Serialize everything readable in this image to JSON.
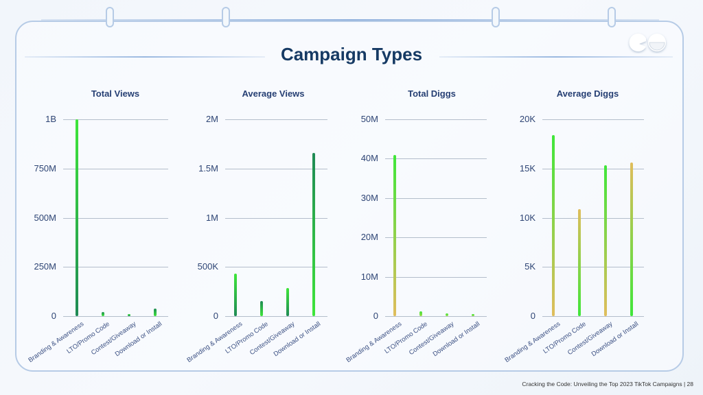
{
  "page": {
    "title": "Campaign Types",
    "footer": "Cracking the Code: Unveiling the Top 2023 TikTok Campaigns | 28",
    "logo_icon": "eyes-logo-icon"
  },
  "colors": {
    "title": "#163a64",
    "chart_title": "#263f73",
    "frame": "#b6cbe6",
    "grid": "#b3bdcb",
    "bar_green": "#3ee03a",
    "bar_dark_green": "#1f8a55",
    "bar_yellow": "#e0bd5c"
  },
  "chart_data": [
    {
      "type": "bar",
      "title": "Total Views",
      "categories": [
        "Branding & Awareness",
        "LTO/Promo Code",
        "Contest/Giveaway",
        "Download or Install"
      ],
      "values": [
        1000000000,
        20000000,
        10000000,
        38000000
      ],
      "yticks": [
        "0",
        "250M",
        "500M",
        "750M",
        "1B"
      ],
      "ylim": [
        0,
        1000000000
      ],
      "xlabel": "",
      "ylabel": "",
      "grid": true
    },
    {
      "type": "bar",
      "title": "Average Views",
      "categories": [
        "Branding & Awareness",
        "LTO/Promo Code",
        "Contest/Giveaway",
        "Download or Install"
      ],
      "values": [
        432000,
        153000,
        286000,
        1660000
      ],
      "yticks": [
        "0",
        "500K",
        "1M",
        "1.5M",
        "2M"
      ],
      "ylim": [
        0,
        2000000
      ],
      "xlabel": "",
      "ylabel": "",
      "grid": true
    },
    {
      "type": "bar",
      "title": "Total Diggs",
      "categories": [
        "Branding & Awareness",
        "LTO/Promo Code",
        "Contest/Giveaway",
        "Download or Install"
      ],
      "values": [
        41000000,
        1200000,
        700000,
        600000
      ],
      "yticks": [
        "0",
        "10M",
        "20M",
        "30M",
        "40M",
        "50M"
      ],
      "ylim": [
        0,
        50000000
      ],
      "xlabel": "",
      "ylabel": "",
      "grid": true
    },
    {
      "type": "bar",
      "title": "Average Diggs",
      "categories": [
        "Branding & Awareness",
        "LTO/Promo Code",
        "Contest/Giveaway",
        "Download or Install"
      ],
      "values": [
        18400,
        10900,
        15300,
        15600
      ],
      "yticks": [
        "0",
        "5K",
        "10K",
        "15K",
        "20K"
      ],
      "ylim": [
        0,
        20000
      ],
      "xlabel": "",
      "ylabel": "",
      "grid": true
    }
  ]
}
